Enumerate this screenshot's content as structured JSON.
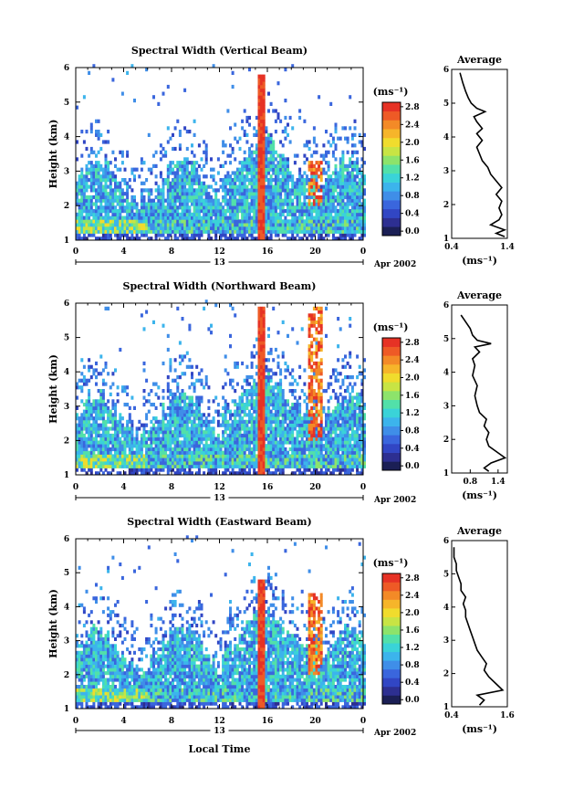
{
  "chart_data": [
    {
      "type": "heatmap",
      "title": "Spectral Width (Vertical Beam)",
      "ylabel": "Height (km)",
      "ylim": [
        1,
        6
      ],
      "yticks": [
        "1",
        "2",
        "3",
        "4",
        "5",
        "6"
      ],
      "xlim": [
        0,
        24
      ],
      "xticks": [
        "0",
        "4",
        "8",
        "12",
        "16",
        "20",
        "0"
      ],
      "day_label": "13",
      "date_label": "Apr 2002",
      "colorbar_unit": "(ms⁻¹)",
      "colorbar_ticks": [
        "0.0",
        "0.4",
        "0.8",
        "1.2",
        "1.6",
        "2.0",
        "2.4",
        "2.8"
      ],
      "colorbar_max": 3.0,
      "profile": {
        "title": "Average",
        "xlabel": "(ms⁻¹)",
        "xticks": [
          "0.4",
          "1.4"
        ],
        "xlim": [
          0.4,
          1.4
        ],
        "ylim": [
          1,
          6
        ],
        "yticks": [
          "1",
          "2",
          "3",
          "4",
          "5",
          "6"
        ],
        "points": [
          [
            1.35,
            1.05
          ],
          [
            1.2,
            1.15
          ],
          [
            1.35,
            1.25
          ],
          [
            1.1,
            1.4
          ],
          [
            1.25,
            1.55
          ],
          [
            1.3,
            1.7
          ],
          [
            1.25,
            1.9
          ],
          [
            1.3,
            2.1
          ],
          [
            1.2,
            2.3
          ],
          [
            1.3,
            2.5
          ],
          [
            1.2,
            2.7
          ],
          [
            1.1,
            2.9
          ],
          [
            1.05,
            3.1
          ],
          [
            0.95,
            3.3
          ],
          [
            0.9,
            3.5
          ],
          [
            0.85,
            3.7
          ],
          [
            0.95,
            3.9
          ],
          [
            0.85,
            4.1
          ],
          [
            0.95,
            4.25
          ],
          [
            0.85,
            4.45
          ],
          [
            0.8,
            4.6
          ],
          [
            1.0,
            4.75
          ],
          [
            0.85,
            4.85
          ],
          [
            0.75,
            5.0
          ],
          [
            0.7,
            5.15
          ],
          [
            0.65,
            5.35
          ],
          [
            0.6,
            5.6
          ],
          [
            0.55,
            5.9
          ]
        ]
      }
    },
    {
      "type": "heatmap",
      "title": "Spectral Width (Northward Beam)",
      "ylabel": "Height (km)",
      "ylim": [
        1,
        6
      ],
      "yticks": [
        "1",
        "2",
        "3",
        "4",
        "5",
        "6"
      ],
      "xlim": [
        0,
        24
      ],
      "xticks": [
        "0",
        "4",
        "8",
        "12",
        "16",
        "20",
        "0"
      ],
      "day_label": "13",
      "date_label": "Apr 2002",
      "colorbar_unit": "(ms⁻¹)",
      "colorbar_ticks": [
        "0.0",
        "0.4",
        "0.8",
        "1.2",
        "1.6",
        "2.0",
        "2.4",
        "2.8"
      ],
      "colorbar_max": 3.0,
      "profile": {
        "title": "Average",
        "xlabel": "(ms⁻¹)",
        "xticks": [
          "0.8",
          "1.4"
        ],
        "xlim": [
          0.4,
          1.6
        ],
        "ylim": [
          1,
          6
        ],
        "yticks": [
          "1",
          "2",
          "3",
          "4",
          "5",
          "6"
        ],
        "points": [
          [
            1.2,
            1.05
          ],
          [
            1.1,
            1.15
          ],
          [
            1.25,
            1.3
          ],
          [
            1.55,
            1.45
          ],
          [
            1.4,
            1.6
          ],
          [
            1.2,
            1.8
          ],
          [
            1.15,
            2.0
          ],
          [
            1.2,
            2.2
          ],
          [
            1.1,
            2.4
          ],
          [
            1.15,
            2.6
          ],
          [
            1.0,
            2.8
          ],
          [
            0.95,
            3.0
          ],
          [
            0.9,
            3.3
          ],
          [
            0.95,
            3.6
          ],
          [
            0.85,
            3.9
          ],
          [
            0.9,
            4.2
          ],
          [
            0.85,
            4.4
          ],
          [
            1.0,
            4.6
          ],
          [
            0.9,
            4.75
          ],
          [
            1.25,
            4.85
          ],
          [
            0.95,
            4.95
          ],
          [
            0.85,
            5.1
          ],
          [
            0.8,
            5.3
          ],
          [
            0.7,
            5.5
          ],
          [
            0.6,
            5.7
          ]
        ]
      }
    },
    {
      "type": "heatmap",
      "title": "Spectral Width (Eastward Beam)",
      "ylabel": "Height (km)",
      "xlabel": "Local Time",
      "ylim": [
        1,
        6
      ],
      "yticks": [
        "1",
        "2",
        "3",
        "4",
        "5",
        "6"
      ],
      "xlim": [
        0,
        24
      ],
      "xticks": [
        "0",
        "4",
        "8",
        "12",
        "16",
        "20",
        "0"
      ],
      "day_label": "13",
      "date_label": "Apr 2002",
      "colorbar_unit": "(ms⁻¹)",
      "colorbar_ticks": [
        "0.0",
        "0.4",
        "0.8",
        "1.2",
        "1.6",
        "2.0",
        "2.4",
        "2.8"
      ],
      "colorbar_max": 3.0,
      "profile": {
        "title": "Average",
        "xlabel": "(ms⁻¹)",
        "xticks": [
          "0.4",
          "1.6"
        ],
        "xlim": [
          0.4,
          1.6
        ],
        "ylim": [
          1,
          6
        ],
        "yticks": [
          "1",
          "2",
          "3",
          "4",
          "5",
          "6"
        ],
        "points": [
          [
            1.0,
            1.05
          ],
          [
            1.1,
            1.2
          ],
          [
            0.95,
            1.35
          ],
          [
            1.5,
            1.5
          ],
          [
            1.35,
            1.7
          ],
          [
            1.2,
            1.9
          ],
          [
            1.1,
            2.1
          ],
          [
            1.15,
            2.3
          ],
          [
            1.05,
            2.5
          ],
          [
            0.95,
            2.7
          ],
          [
            0.9,
            2.9
          ],
          [
            0.85,
            3.1
          ],
          [
            0.8,
            3.3
          ],
          [
            0.75,
            3.5
          ],
          [
            0.7,
            3.7
          ],
          [
            0.7,
            3.9
          ],
          [
            0.65,
            4.1
          ],
          [
            0.7,
            4.3
          ],
          [
            0.6,
            4.5
          ],
          [
            0.6,
            4.7
          ],
          [
            0.55,
            4.9
          ],
          [
            0.5,
            5.1
          ],
          [
            0.5,
            5.3
          ],
          [
            0.45,
            5.5
          ],
          [
            0.45,
            5.8
          ]
        ]
      }
    }
  ]
}
